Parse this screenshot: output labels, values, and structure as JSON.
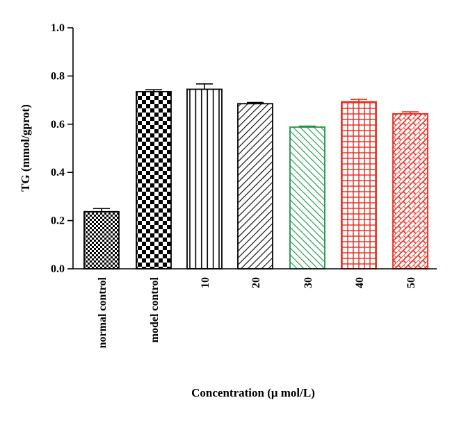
{
  "chart_data": {
    "type": "bar",
    "title": "",
    "xlabel": "Concentration (μ mol/L)",
    "ylabel": "TG (mmol/gprot)",
    "ylim": [
      0,
      1.0
    ],
    "yticks": [
      "0.0",
      "0.2",
      "0.4",
      "0.6",
      "0.8",
      "1.0"
    ],
    "categories": [
      "normal control",
      "model control",
      "10",
      "20",
      "30",
      "40",
      "50"
    ],
    "values": [
      0.237,
      0.735,
      0.745,
      0.685,
      0.588,
      0.693,
      0.643
    ],
    "errors": [
      0.013,
      0.008,
      0.022,
      0.005,
      0.004,
      0.01,
      0.008
    ],
    "colors": [
      "#000000",
      "#000000",
      "#000000",
      "#000000",
      "#1a9641",
      "#e8291c",
      "#e8291c"
    ],
    "patterns": [
      "checker-small",
      "checker-large",
      "vertical-lines",
      "diagonal-right",
      "diagonal-left",
      "grid",
      "brick"
    ]
  }
}
